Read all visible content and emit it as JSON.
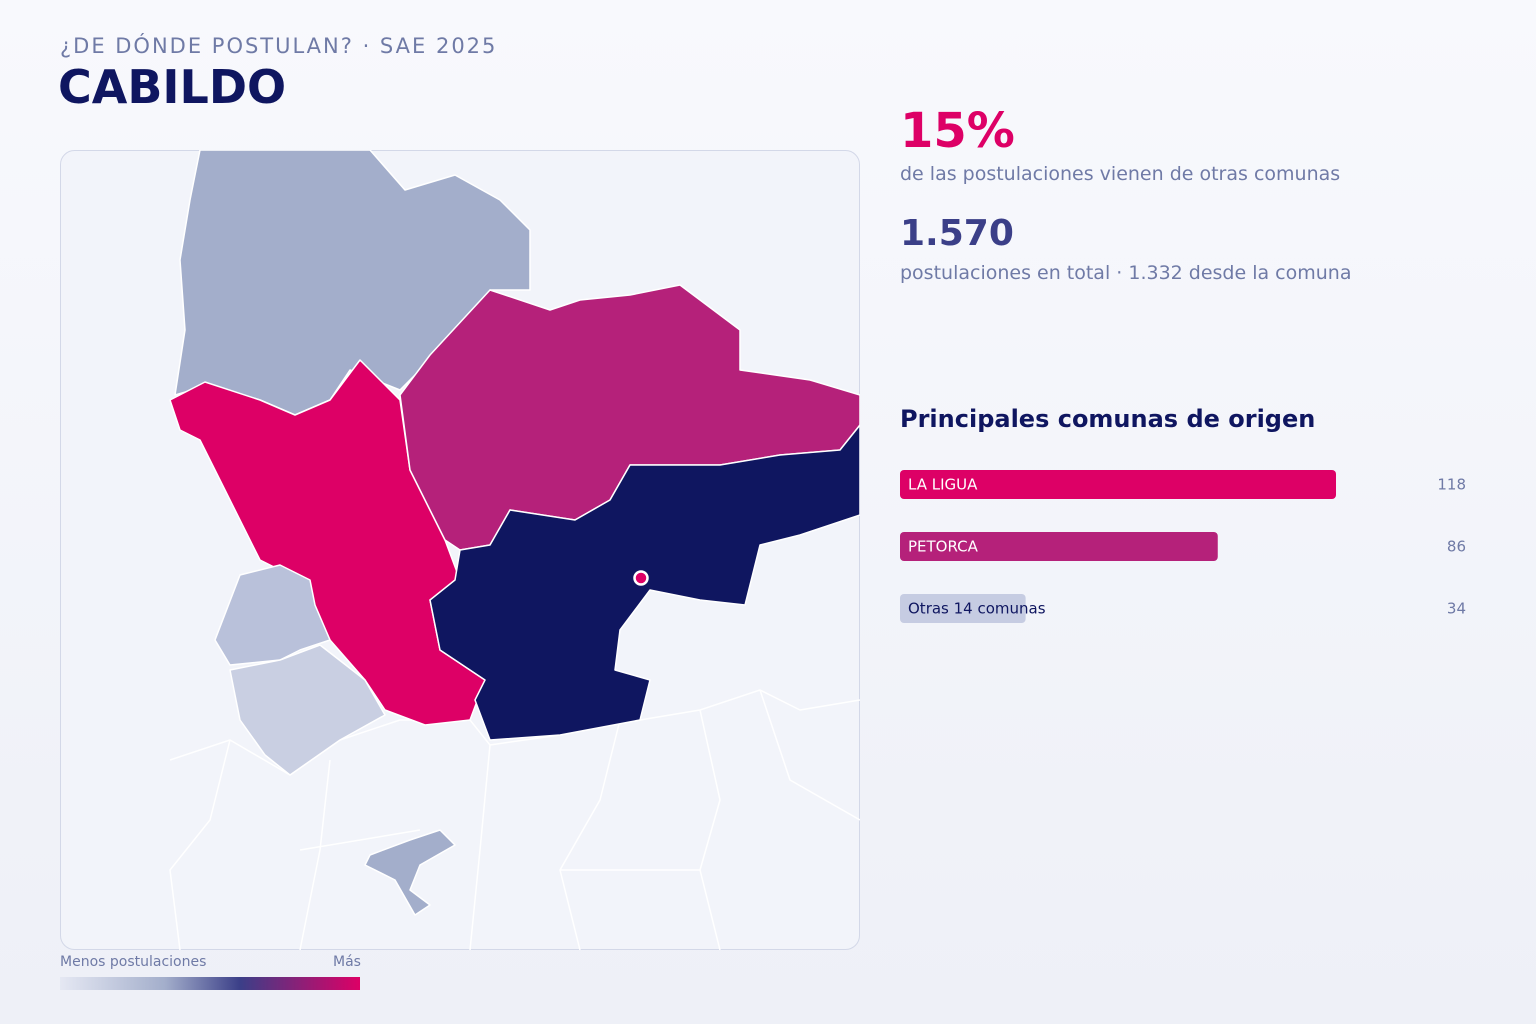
{
  "header": {
    "kicker": "¿DE DÓNDE POSTULAN? · SAE 2025",
    "title": "CABILDO"
  },
  "stats": {
    "share": "15%",
    "share_text": "de las postulaciones vienen de otras comunas",
    "total": "1.570",
    "total_text": "postulaciones en total · 1.332 desde la comuna"
  },
  "ranking": {
    "title": "Principales comunas de origen",
    "items": [
      {
        "name": "LA LIGUA",
        "value": 118,
        "color": "#dd0066"
      },
      {
        "name": "PETORCA",
        "value": 86,
        "color": "#b5217a"
      },
      {
        "name": "Otras 14 comunas",
        "value": 34,
        "color": "#c6cce2"
      }
    ]
  },
  "legend": {
    "low": "Menos postulaciones",
    "high": "Más"
  }
}
